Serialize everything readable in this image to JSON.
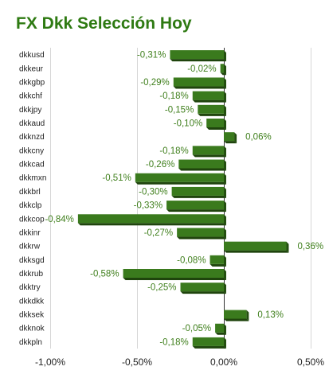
{
  "chart_data": {
    "type": "bar",
    "orientation": "horizontal",
    "title": "FX Dkk Selección Hoy",
    "xlabel": "",
    "ylabel": "",
    "xlim": [
      -1.0,
      0.5
    ],
    "x_ticks": [
      -1.0,
      -0.5,
      0.0,
      0.5
    ],
    "x_tick_labels": [
      "-1,00%",
      "-0,50%",
      "0,00%",
      "0,50%"
    ],
    "grid": true,
    "legend": "none",
    "bar_color": "#3a7a1d",
    "label_color": "#3f7f1c",
    "title_color": "#2e7a12",
    "categories": [
      "dkkusd",
      "dkkeur",
      "dkkgbp",
      "dkkchf",
      "dkkjpy",
      "dkkaud",
      "dkknzd",
      "dkkcny",
      "dkkcad",
      "dkkmxn",
      "dkkbrl",
      "dkkclp",
      "dkkcop",
      "dkkinr",
      "dkkrw",
      "dkksgd",
      "dkkrub",
      "dkktry",
      "dkkdkk",
      "dkksek",
      "dkknok",
      "dkkpln"
    ],
    "values": [
      -0.31,
      -0.02,
      -0.29,
      -0.18,
      -0.15,
      -0.1,
      0.06,
      -0.18,
      -0.26,
      -0.51,
      -0.3,
      -0.33,
      -0.84,
      -0.27,
      0.36,
      -0.08,
      -0.58,
      -0.25,
      null,
      0.13,
      -0.05,
      -0.18
    ],
    "value_labels": [
      "-0,31%",
      "-0,02%",
      "-0,29%",
      "-0,18%",
      "-0,15%",
      "-0,10%",
      "0,06%",
      "-0,18%",
      "-0,26%",
      "-0,51%",
      "-0,30%",
      "-0,33%",
      "-0,84%",
      "-0,27%",
      "0,36%",
      "-0,08%",
      "-0,58%",
      "-0,25%",
      "",
      "0,13%",
      "-0,05%",
      "-0,18%"
    ]
  }
}
